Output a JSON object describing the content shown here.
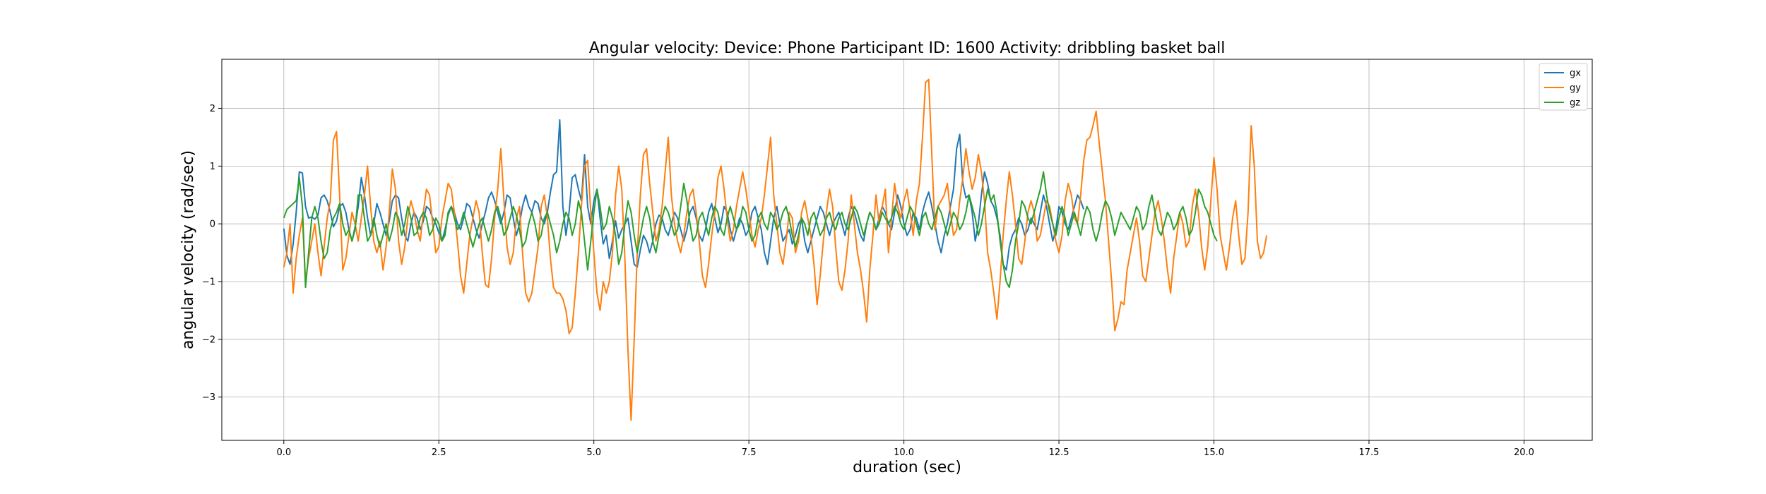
{
  "chart_data": {
    "type": "line",
    "title": "Angular velocity:  Device: Phone     Participant ID: 1600      Activity:  dribbling basket ball",
    "xlabel": "duration  (sec)",
    "ylabel": "angular velocity  (rad/sec)",
    "xlim": [
      -1.0,
      21.1
    ],
    "ylim": [
      -3.75,
      2.85
    ],
    "x_ticks": [
      0.0,
      2.5,
      5.0,
      7.5,
      10.0,
      12.5,
      15.0,
      17.5,
      20.0
    ],
    "x_tick_labels": [
      "0.0",
      "2.5",
      "5.0",
      "7.5",
      "10.0",
      "12.5",
      "15.0",
      "17.5",
      "20.0"
    ],
    "y_ticks": [
      2,
      1,
      0,
      -1,
      -2,
      -3
    ],
    "y_tick_labels": [
      "2",
      "1",
      "0",
      "−1",
      "−2",
      "−3"
    ],
    "grid": true,
    "legend_position": "top-right",
    "sample_interval": 0.05,
    "x_start": 0.0,
    "series": [
      {
        "name": "gx",
        "color": "#1f77b4",
        "values": [
          -0.08,
          -0.55,
          -0.7,
          -0.35,
          0.2,
          0.9,
          0.88,
          0.3,
          0.1,
          0.12,
          0.08,
          0.15,
          0.45,
          0.5,
          0.4,
          0.2,
          -0.05,
          0.05,
          0.3,
          0.35,
          0.2,
          -0.1,
          -0.3,
          -0.05,
          0.3,
          0.8,
          0.5,
          0.1,
          -0.2,
          0.0,
          0.35,
          0.2,
          0.0,
          -0.2,
          0.05,
          0.4,
          0.5,
          0.45,
          0.1,
          -0.2,
          -0.3,
          0.0,
          0.2,
          0.1,
          -0.1,
          0.05,
          0.3,
          0.25,
          0.1,
          0.0,
          -0.15,
          -0.3,
          -0.1,
          0.15,
          0.3,
          0.2,
          0.0,
          -0.1,
          0.1,
          0.35,
          0.3,
          0.1,
          -0.1,
          -0.25,
          0.0,
          0.2,
          0.45,
          0.55,
          0.4,
          0.2,
          0.0,
          0.2,
          0.5,
          0.45,
          0.1,
          -0.2,
          0.0,
          0.3,
          0.5,
          0.3,
          0.2,
          0.4,
          0.35,
          0.1,
          0.0,
          0.2,
          0.55,
          0.85,
          0.9,
          1.8,
          0.3,
          -0.2,
          0.2,
          0.8,
          0.85,
          0.6,
          0.4,
          1.2,
          0.3,
          0.0,
          0.4,
          0.6,
          0.1,
          -0.35,
          -0.2,
          -0.6,
          -0.3,
          0.05,
          -0.25,
          -0.1,
          0.0,
          0.1,
          -0.3,
          -0.7,
          -0.75,
          -0.45,
          -0.2,
          -0.3,
          -0.5,
          -0.3,
          0.0,
          0.15,
          0.1,
          -0.1,
          -0.2,
          0.0,
          0.2,
          0.1,
          -0.1,
          -0.3,
          -0.1,
          0.2,
          0.3,
          0.1,
          -0.2,
          -0.3,
          -0.1,
          0.2,
          0.35,
          0.1,
          -0.15,
          0.0,
          0.3,
          0.2,
          -0.1,
          -0.3,
          -0.1,
          0.1,
          0.0,
          -0.2,
          -0.1,
          0.2,
          0.3,
          0.1,
          -0.1,
          -0.5,
          -0.7,
          -0.3,
          0.1,
          0.3,
          0.0,
          -0.3,
          -0.2,
          -0.1,
          -0.35,
          -0.2,
          0.0,
          0.1,
          -0.3,
          -0.5,
          -0.3,
          -0.1,
          0.1,
          0.3,
          0.2,
          0.0,
          -0.2,
          0.0,
          0.1,
          0.2,
          0.0,
          -0.2,
          0.1,
          0.3,
          0.2,
          0.0,
          -0.2,
          -0.3,
          0.0,
          0.2,
          0.1,
          -0.1,
          0.1,
          0.3,
          0.2,
          0.0,
          -0.1,
          0.2,
          0.5,
          0.3,
          0.0,
          -0.2,
          -0.1,
          0.2,
          0.1,
          -0.1,
          0.2,
          0.4,
          0.55,
          0.3,
          0.0,
          -0.3,
          -0.5,
          -0.2,
          0.0,
          0.3,
          0.6,
          1.3,
          1.55,
          0.7,
          0.45,
          0.5,
          0.2,
          -0.3,
          0.0,
          0.5,
          0.9,
          0.7,
          0.4,
          0.3,
          0.1,
          -0.2,
          -0.7,
          -0.8,
          -0.4,
          -0.2,
          -0.1,
          0.1,
          0.0,
          -0.2,
          -0.1,
          0.1,
          0.0,
          -0.1,
          0.2,
          0.5,
          0.3,
          0.0,
          -0.3,
          -0.1,
          0.3,
          0.2,
          0.0,
          -0.1,
          0.1,
          0.3,
          0.5,
          0.4,
          0.25
        ]
      },
      {
        "name": "gy",
        "color": "#ff7f0e",
        "values": [
          -0.75,
          -0.5,
          0.0,
          -1.2,
          -0.6,
          -0.2,
          0.1,
          -1.0,
          -0.6,
          -0.3,
          0.0,
          -0.5,
          -0.9,
          -0.4,
          0.1,
          0.4,
          1.45,
          1.6,
          0.5,
          -0.8,
          -0.6,
          -0.2,
          0.2,
          0.0,
          -0.3,
          0.1,
          0.5,
          1.0,
          0.3,
          -0.3,
          -0.5,
          -0.3,
          -0.8,
          -0.4,
          0.2,
          0.95,
          0.6,
          -0.3,
          -0.7,
          -0.4,
          0.1,
          0.4,
          0.2,
          -0.1,
          -0.3,
          0.2,
          0.6,
          0.5,
          0.0,
          -0.5,
          -0.4,
          0.1,
          0.4,
          0.7,
          0.6,
          0.2,
          -0.3,
          -0.9,
          -1.2,
          -0.7,
          -0.2,
          0.1,
          0.4,
          0.2,
          -0.5,
          -1.05,
          -1.1,
          -0.6,
          0.1,
          0.6,
          1.3,
          0.4,
          -0.4,
          -0.7,
          -0.5,
          0.1,
          0.3,
          -0.5,
          -1.2,
          -1.35,
          -1.2,
          -0.8,
          -0.4,
          0.3,
          0.5,
          0.1,
          -0.6,
          -1.1,
          -1.2,
          -1.2,
          -1.3,
          -1.5,
          -1.9,
          -1.8,
          -1.2,
          -0.5,
          0.3,
          1.0,
          1.1,
          0.2,
          -0.5,
          -1.2,
          -1.5,
          -1.0,
          -1.2,
          -1.0,
          -0.5,
          0.5,
          1.0,
          0.6,
          -0.6,
          -2.2,
          -3.4,
          -2.0,
          -0.5,
          0.5,
          1.2,
          1.3,
          0.7,
          0.2,
          -0.3,
          -0.1,
          0.3,
          0.9,
          1.5,
          0.5,
          0.0,
          -0.3,
          -0.5,
          -0.2,
          0.2,
          0.5,
          0.6,
          0.2,
          -0.3,
          -0.9,
          -1.1,
          -0.7,
          -0.2,
          0.2,
          0.8,
          1.0,
          0.6,
          0.1,
          -0.3,
          -0.1,
          0.3,
          0.6,
          0.9,
          0.6,
          0.2,
          -0.2,
          -0.4,
          -0.1,
          0.1,
          0.5,
          1.0,
          1.5,
          0.5,
          0.0,
          -0.5,
          -0.7,
          -0.3,
          0.2,
          0.1,
          -0.5,
          -0.3,
          0.2,
          0.4,
          0.1,
          -0.2,
          -0.7,
          -1.4,
          -0.9,
          -0.3,
          0.2,
          0.6,
          0.3,
          -0.4,
          -1.0,
          -1.15,
          -0.8,
          -0.3,
          0.5,
          0.0,
          -0.5,
          -0.8,
          -1.2,
          -1.7,
          -0.8,
          -0.2,
          0.5,
          0.0,
          0.3,
          0.6,
          -0.5,
          0.1,
          0.7,
          0.3,
          0.1,
          0.4,
          0.6,
          0.2,
          -0.2,
          0.4,
          0.7,
          1.5,
          2.45,
          2.5,
          1.2,
          -0.1,
          0.3,
          0.4,
          0.5,
          0.7,
          0.2,
          -0.2,
          -0.1,
          0.4,
          0.8,
          1.3,
          0.9,
          0.6,
          0.8,
          1.2,
          0.9,
          0.4,
          -0.5,
          -0.8,
          -1.2,
          -1.65,
          -1.0,
          -0.2,
          0.4,
          0.9,
          0.5,
          0.0,
          -0.6,
          -0.7,
          -0.3,
          0.2,
          0.4,
          0.2,
          -0.3,
          -0.2,
          0.1,
          0.4,
          0.3,
          0.0,
          -0.3,
          -0.5,
          -0.2,
          0.4,
          0.7,
          0.5,
          0.1,
          0.0,
          0.5,
          1.1,
          1.45,
          1.5,
          1.7,
          1.95,
          1.4,
          0.9,
          0.4,
          -0.3,
          -1.0,
          -1.85,
          -1.65,
          -1.35,
          -1.4,
          -0.8,
          -0.5,
          -0.2,
          0.1,
          -0.3,
          -0.9,
          -1.0,
          -0.6,
          -0.2,
          0.2,
          0.4,
          0.1,
          -0.3,
          -0.8,
          -1.2,
          -0.6,
          -0.2,
          0.2,
          0.0,
          -0.4,
          -0.3,
          0.3,
          0.6,
          0.2,
          -0.4,
          -0.8,
          -0.4,
          0.4,
          1.15,
          0.6,
          -0.2,
          -0.5,
          -0.8,
          -0.4,
          0.1,
          0.4,
          -0.2,
          -0.7,
          -0.6,
          0.2,
          1.7,
          1.0,
          -0.3,
          -0.6,
          -0.5,
          -0.2
        ]
      },
      {
        "name": "gz",
        "color": "#2ca02c",
        "values": [
          0.1,
          0.25,
          0.3,
          0.35,
          0.4,
          0.8,
          0.3,
          -1.1,
          -0.5,
          0.1,
          0.3,
          0.1,
          -0.3,
          -0.6,
          -0.5,
          -0.1,
          0.1,
          0.2,
          0.35,
          0.0,
          -0.2,
          -0.1,
          -0.3,
          -0.1,
          0.5,
          0.5,
          0.1,
          -0.3,
          -0.2,
          0.1,
          -0.2,
          -0.4,
          -0.2,
          0.0,
          -0.3,
          -0.1,
          0.2,
          0.1,
          -0.2,
          0.0,
          0.3,
          0.1,
          -0.2,
          -0.15,
          0.1,
          0.2,
          0.1,
          -0.2,
          -0.1,
          0.1,
          0.0,
          -0.3,
          -0.2,
          0.2,
          0.3,
          0.1,
          -0.1,
          0.0,
          0.2,
          0.0,
          -0.2,
          -0.4,
          -0.2,
          0.0,
          0.1,
          -0.1,
          -0.3,
          -0.1,
          0.2,
          0.3,
          0.1,
          -0.2,
          -0.1,
          0.1,
          0.3,
          0.15,
          -0.1,
          -0.4,
          -0.3,
          0.0,
          0.2,
          0.0,
          -0.3,
          -0.2,
          0.1,
          0.2,
          0.0,
          -0.2,
          -0.5,
          -0.3,
          0.0,
          0.2,
          0.1,
          -0.2,
          0.0,
          0.4,
          0.2,
          -0.3,
          -0.8,
          -0.3,
          0.2,
          0.6,
          0.3,
          -0.1,
          0.0,
          0.3,
          0.1,
          -0.2,
          -0.7,
          -0.5,
          0.0,
          0.4,
          0.2,
          -0.2,
          -0.5,
          -0.2,
          0.1,
          0.3,
          0.1,
          -0.3,
          -0.5,
          -0.2,
          0.1,
          0.3,
          0.2,
          0.0,
          -0.2,
          -0.1,
          0.3,
          0.7,
          0.4,
          0.0,
          -0.3,
          -0.2,
          0.1,
          0.2,
          0.0,
          -0.2,
          0.1,
          0.3,
          0.2,
          -0.1,
          -0.2,
          0.1,
          0.3,
          0.1,
          -0.1,
          0.0,
          0.3,
          0.2,
          -0.1,
          -0.3,
          -0.2,
          0.1,
          0.2,
          0.0,
          -0.1,
          0.2,
          0.1,
          -0.1,
          0.0,
          0.2,
          0.3,
          0.1,
          -0.2,
          -0.4,
          -0.2,
          0.1,
          0.0,
          -0.2,
          0.1,
          0.2,
          0.0,
          -0.2,
          -0.1,
          0.1,
          0.2,
          0.0,
          -0.1,
          0.1,
          0.2,
          0.0,
          -0.1,
          0.1,
          0.3,
          0.2,
          0.0,
          -0.2,
          0.0,
          0.2,
          0.1,
          -0.1,
          0.0,
          0.2,
          0.1,
          0.0,
          0.1,
          0.3,
          0.2,
          0.0,
          -0.1,
          0.1,
          0.3,
          0.2,
          0.0,
          -0.2,
          0.1,
          0.2,
          0.0,
          -0.1,
          0.1,
          0.3,
          0.2,
          0.0,
          -0.2,
          0.0,
          0.2,
          0.1,
          -0.1,
          0.0,
          0.2,
          0.5,
          0.3,
          0.1,
          -0.2,
          0.0,
          0.3,
          0.6,
          0.4,
          0.5,
          0.2,
          -0.3,
          -0.7,
          -1.0,
          -1.1,
          -0.8,
          -0.3,
          0.0,
          0.4,
          0.3,
          0.1,
          0.0,
          0.2,
          0.4,
          0.6,
          0.9,
          0.5,
          0.2,
          0.0,
          -0.2,
          0.1,
          0.3,
          0.1,
          -0.2,
          0.0,
          0.2,
          0.0,
          -0.2,
          0.1,
          0.3,
          0.2,
          -0.1,
          -0.3,
          -0.1,
          0.2,
          0.4,
          0.3,
          0.1,
          -0.2,
          0.0,
          0.2,
          0.1,
          0.0,
          -0.1,
          0.1,
          0.3,
          0.2,
          -0.1,
          0.0,
          0.3,
          0.5,
          0.2,
          -0.1,
          -0.2,
          0.0,
          0.2,
          0.1,
          -0.1,
          0.0,
          0.2,
          0.3,
          0.1,
          -0.2,
          -0.1,
          0.2,
          0.6,
          0.5,
          0.3,
          0.2,
          0.0,
          -0.2,
          -0.3
        ]
      }
    ]
  }
}
